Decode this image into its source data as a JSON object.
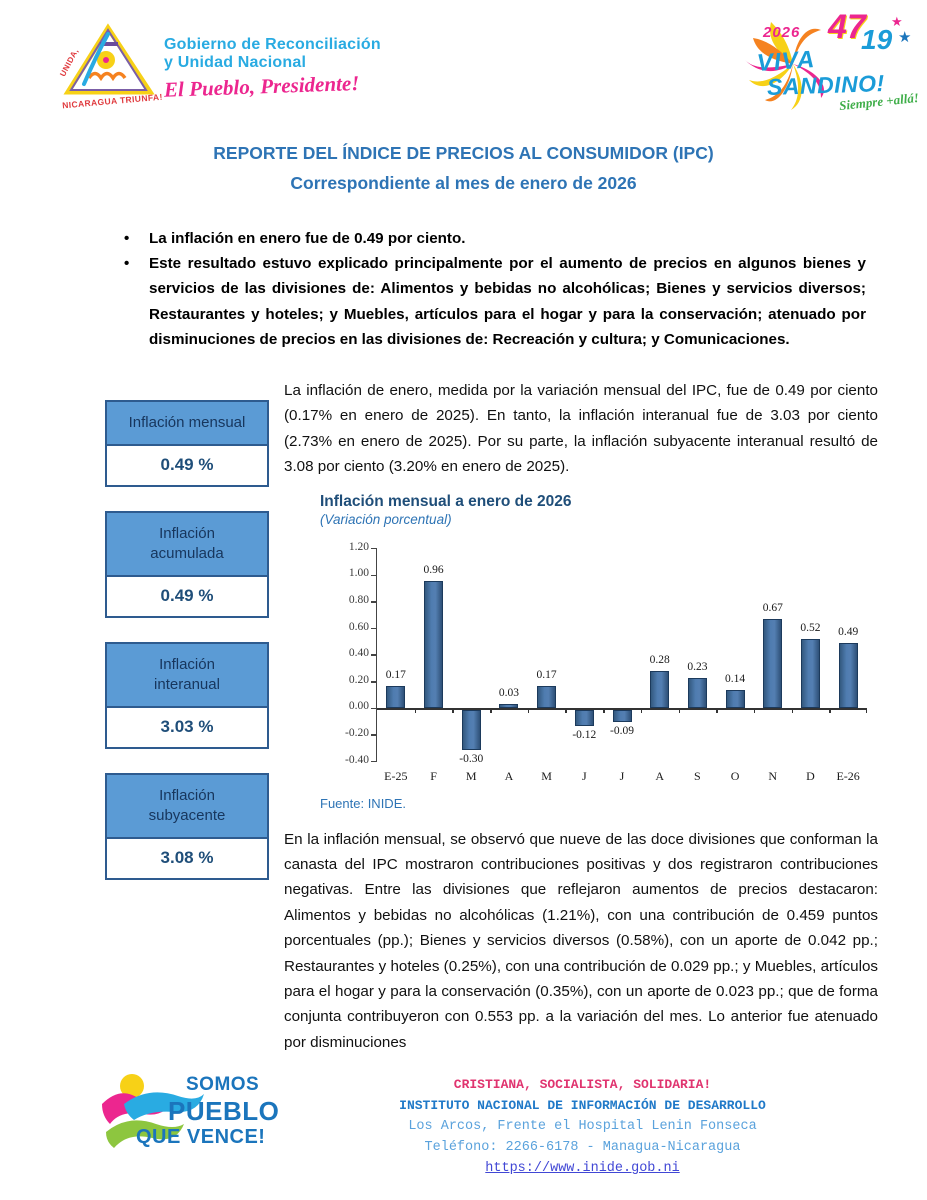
{
  "header": {
    "left_logo": {
      "line1": "Gobierno de Reconciliación",
      "line2": "y Unidad Nacional",
      "script": "El Pueblo, Presidente!",
      "side_text": "UNIDA,",
      "arc_text": "NICARAGUA TRIUNFA!"
    },
    "right_logo": {
      "year": "2026",
      "num_47": "47",
      "num_19": "19",
      "star1": "★",
      "star2": "★",
      "viva": "VIVA",
      "sandino": "SANDINO!",
      "script": "Siempre +allá!"
    }
  },
  "title": {
    "line1": "REPORTE DEL ÍNDICE DE PRECIOS AL CONSUMIDOR (IPC)",
    "line2": "Correspondiente al mes de enero de 2026"
  },
  "bullets": [
    "La inflación en enero fue de 0.49 por ciento.",
    "Este resultado estuvo explicado principalmente por el aumento de precios en algunos bienes y servicios de las divisiones de: Alimentos y bebidas no alcohólicas; Bienes y servicios diversos; Restaurantes y hoteles; y Muebles, artículos para el hogar y para la conservación; atenuado por disminuciones de precios en las divisiones de: Recreación y cultura; y Comunicaciones."
  ],
  "stat_boxes": [
    {
      "label": "Inflación mensual",
      "value": "0.49 %"
    },
    {
      "label": "Inflación\nacumulada",
      "value": "0.49 %"
    },
    {
      "label": "Inflación\ninteranual",
      "value": "3.03 %"
    },
    {
      "label": "Inflación\nsubyacente",
      "value": "3.08 %"
    }
  ],
  "paragraph1": "La inflación de enero, medida por la variación mensual del IPC, fue de 0.49 por ciento (0.17% en enero de 2025). En tanto, la inflación interanual fue de 3.03 por ciento (2.73% en enero de 2025). Por su parte, la inflación subyacente interanual resultó de 3.08 por ciento (3.20% en enero de 2025).",
  "chart_data": {
    "type": "bar",
    "title": "Inflación mensual a enero de 2026",
    "subtitle": "(Variación porcentual)",
    "categories": [
      "E-25",
      "F",
      "M",
      "A",
      "M",
      "J",
      "J",
      "A",
      "S",
      "O",
      "N",
      "D",
      "E-26"
    ],
    "values": [
      0.17,
      0.96,
      -0.3,
      0.03,
      0.17,
      -0.12,
      -0.09,
      0.28,
      0.23,
      0.14,
      0.67,
      0.52,
      0.49
    ],
    "ylim": [
      -0.4,
      1.2
    ],
    "yticks": [
      "1.20",
      "1.00",
      "0.80",
      "0.60",
      "0.40",
      "0.20",
      "0.00",
      "-0.20",
      "-0.40"
    ],
    "grid": false,
    "legend": false,
    "bar_color": "#44689D",
    "source": "Fuente: INIDE."
  },
  "paragraph2": "En la inflación mensual, se observó que nueve de las doce divisiones que conforman la canasta del IPC mostraron contribuciones positivas y dos registraron contribuciones negativas. Entre las divisiones que reflejaron aumentos de precios destacaron: Alimentos y bebidas no alcohólicas (1.21%), con una contribución de 0.459 puntos porcentuales (pp.); Bienes y servicios diversos (0.58%), con un aporte de 0.042 pp.; Restaurantes y hoteles (0.25%), con una contribución de 0.029 pp.; y Muebles, artículos para el hogar y para la conservación (0.35%), con un aporte de 0.023 pp.; que de forma conjunta contribuyeron con 0.553 pp. a la variación del mes. Lo anterior fue atenuado por disminuciones",
  "footer": {
    "logo": {
      "line1": "SOMOS",
      "line2": "PUEBLO",
      "line3": "QUE VENCE!"
    },
    "motto": "CRISTIANA, SOCIALISTA, SOLIDARIA!",
    "institute": "INSTITUTO NACIONAL DE INFORMACIÓN DE DESARROLLO",
    "address": "Los Arcos, Frente el Hospital Lenin Fonseca",
    "phone": "Teléfono: 2266-6178 - Managua-Nicaragua",
    "url": "https://www.inide.gob.ni"
  },
  "colors": {
    "title_blue": "#2E74B5",
    "box_header_bg": "#5B9BD5",
    "box_border": "#2E5B8F",
    "value_navy": "#1F4E79",
    "bar_fill": "#44689D",
    "footer_pink": "#E0346F",
    "footer_blue": "#2079C8",
    "link_blue": "#4147D5"
  }
}
